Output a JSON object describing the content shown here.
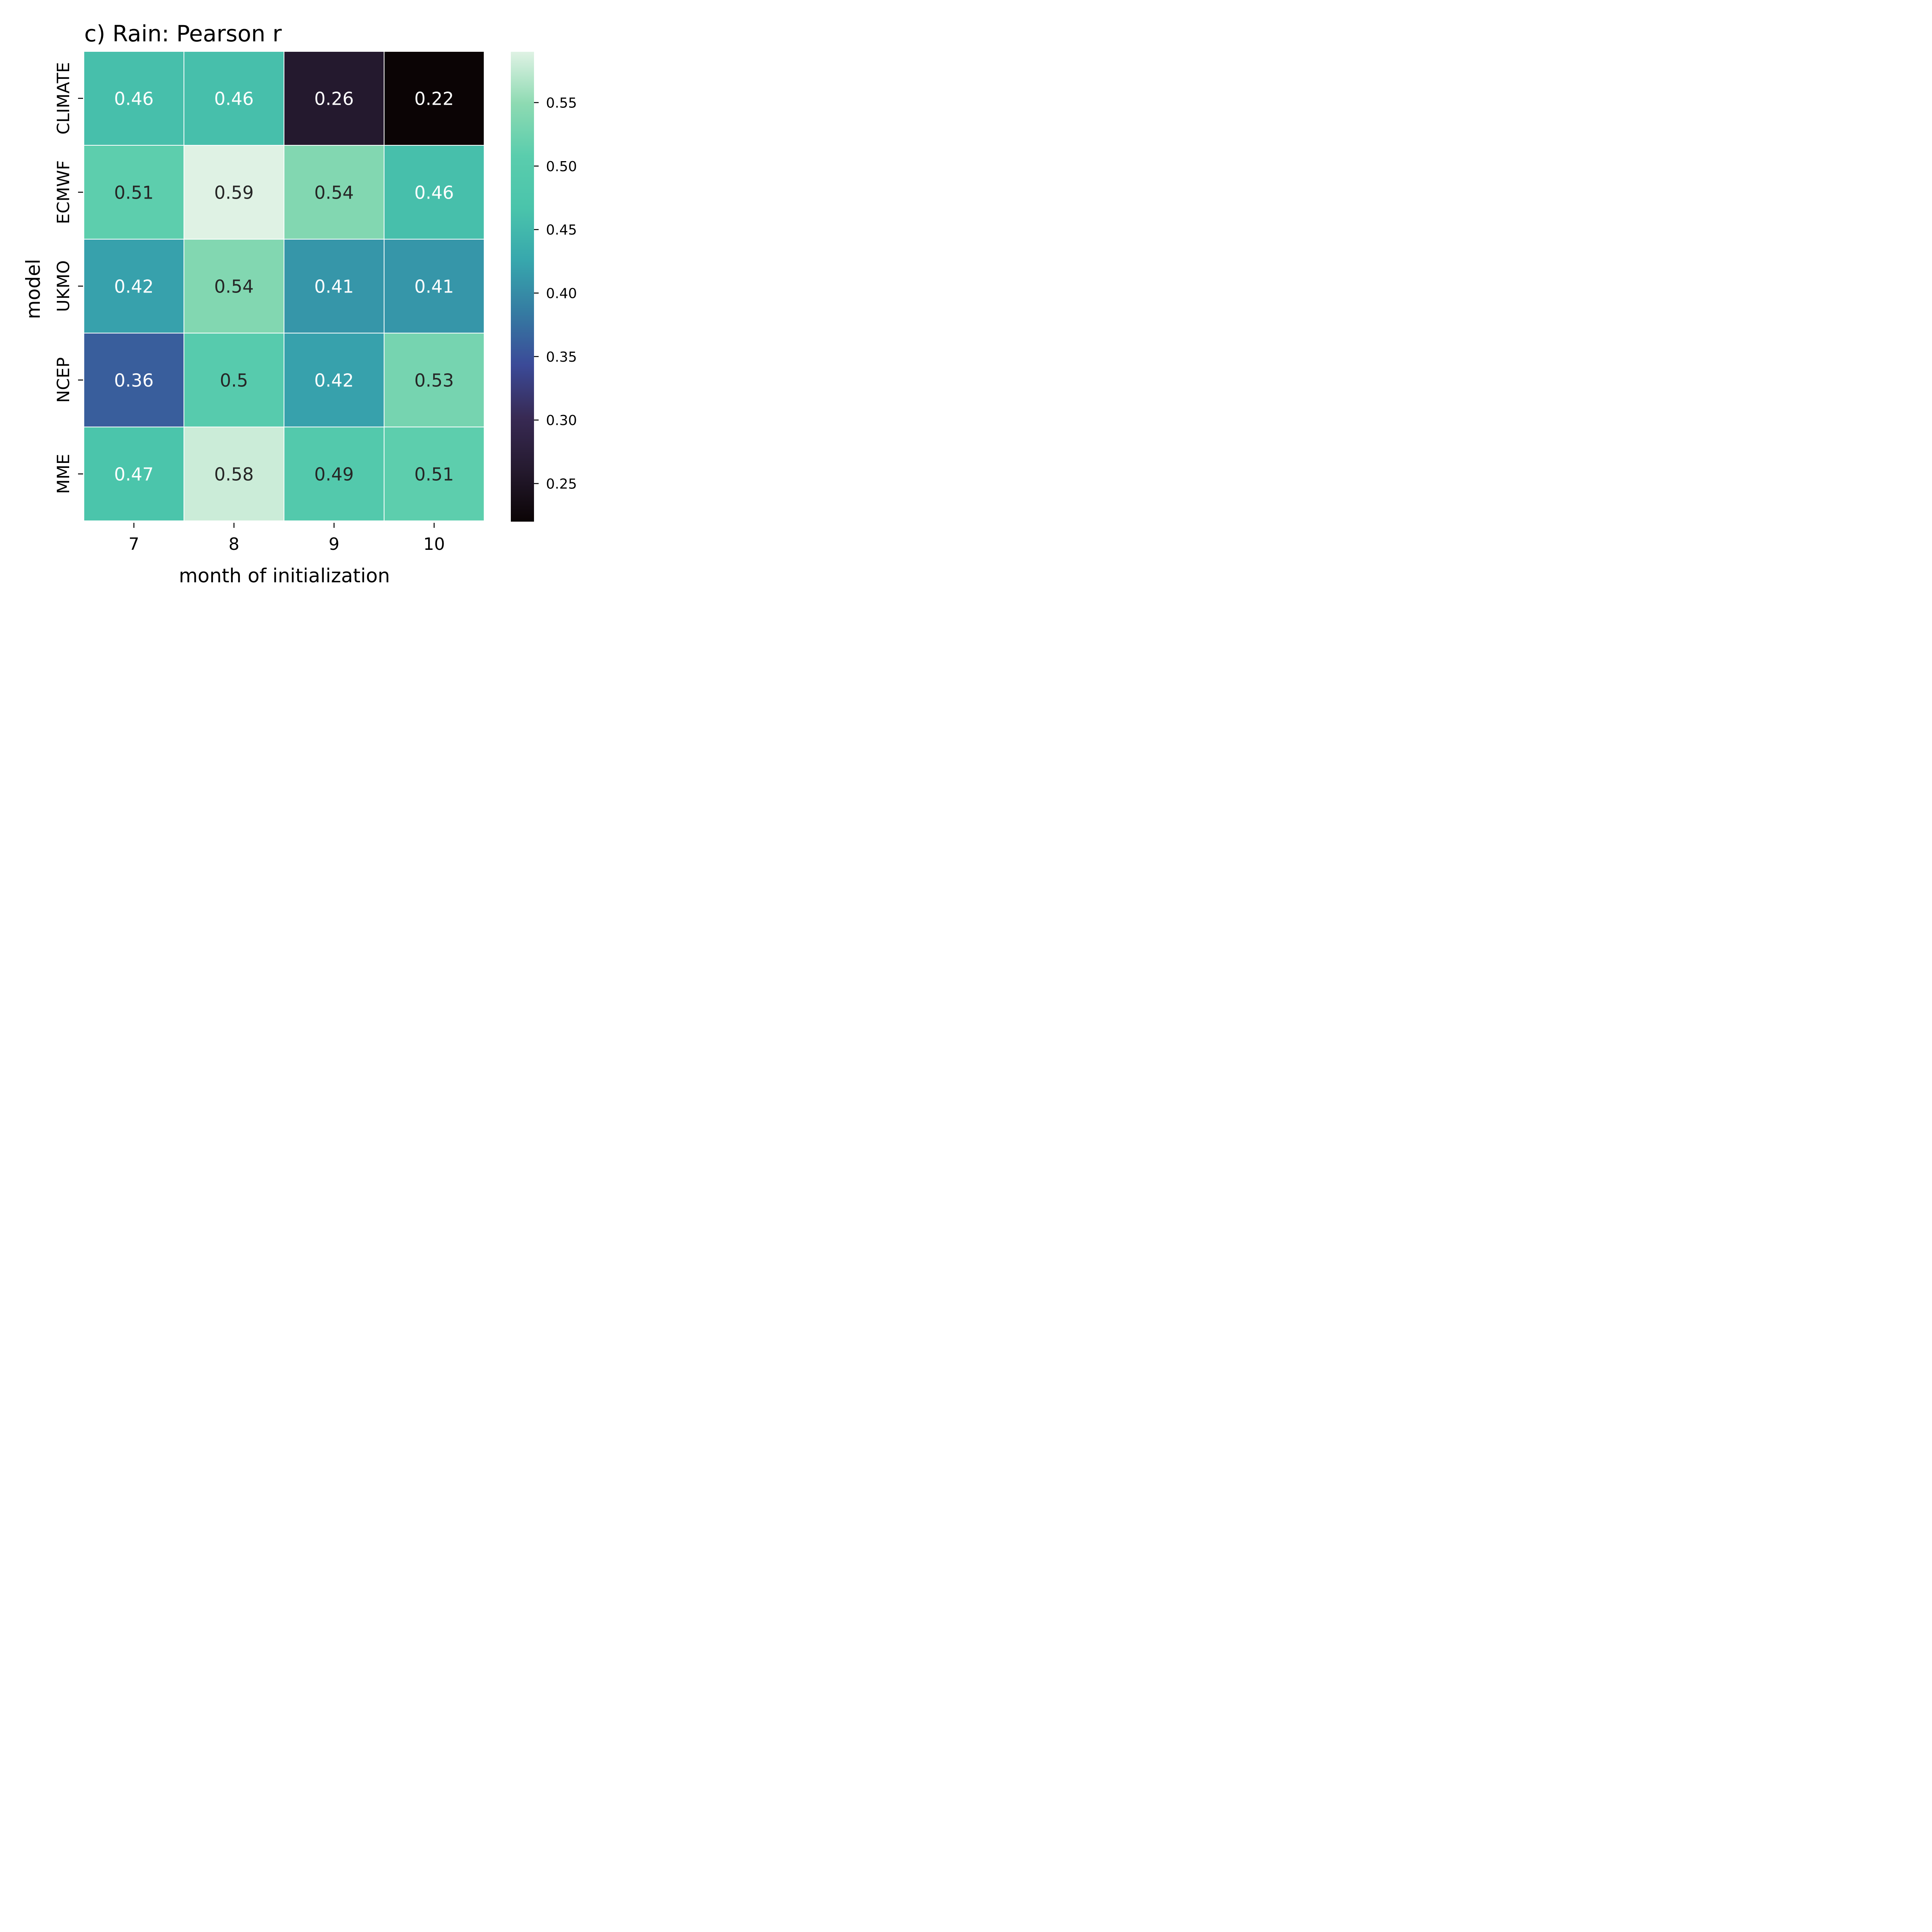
{
  "chart_data": {
    "type": "heatmap",
    "title": "c) Rain: Pearson r",
    "xlabel": "month of initialization",
    "ylabel": "model",
    "x_categories": [
      "7",
      "8",
      "9",
      "10"
    ],
    "y_categories": [
      "CLIMATE",
      "ECMWF",
      "UKMO",
      "NCEP",
      "MME"
    ],
    "values": [
      [
        0.46,
        0.46,
        0.26,
        0.22
      ],
      [
        0.51,
        0.59,
        0.54,
        0.46
      ],
      [
        0.42,
        0.54,
        0.41,
        0.41
      ],
      [
        0.36,
        0.5,
        0.42,
        0.53
      ],
      [
        0.47,
        0.58,
        0.49,
        0.51
      ]
    ],
    "cell_labels": [
      [
        "0.46",
        "0.46",
        "0.26",
        "0.22"
      ],
      [
        "0.51",
        "0.59",
        "0.54",
        "0.46"
      ],
      [
        "0.42",
        "0.54",
        "0.41",
        "0.41"
      ],
      [
        "0.36",
        "0.5",
        "0.42",
        "0.53"
      ],
      [
        "0.47",
        "0.58",
        "0.49",
        "0.51"
      ]
    ],
    "colorbar": {
      "vmin": 0.22,
      "vmax": 0.59,
      "ticks": [
        0.25,
        0.3,
        0.35,
        0.4,
        0.45,
        0.5,
        0.55
      ],
      "tick_labels": [
        "0.25",
        "0.30",
        "0.35",
        "0.40",
        "0.45",
        "0.50",
        "0.55"
      ]
    },
    "colormap": "mako",
    "colormap_stops": [
      "#0b0405",
      "#251a2f",
      "#382a54",
      "#3b4a98",
      "#357ba2",
      "#37a7ad",
      "#4ac4ab",
      "#5acdad",
      "#8ddab2",
      "#dff2e4"
    ],
    "text_colors": {
      "light": "#ffffff",
      "dark": "#262626"
    },
    "grid": false,
    "legend": "colorbar-right"
  }
}
